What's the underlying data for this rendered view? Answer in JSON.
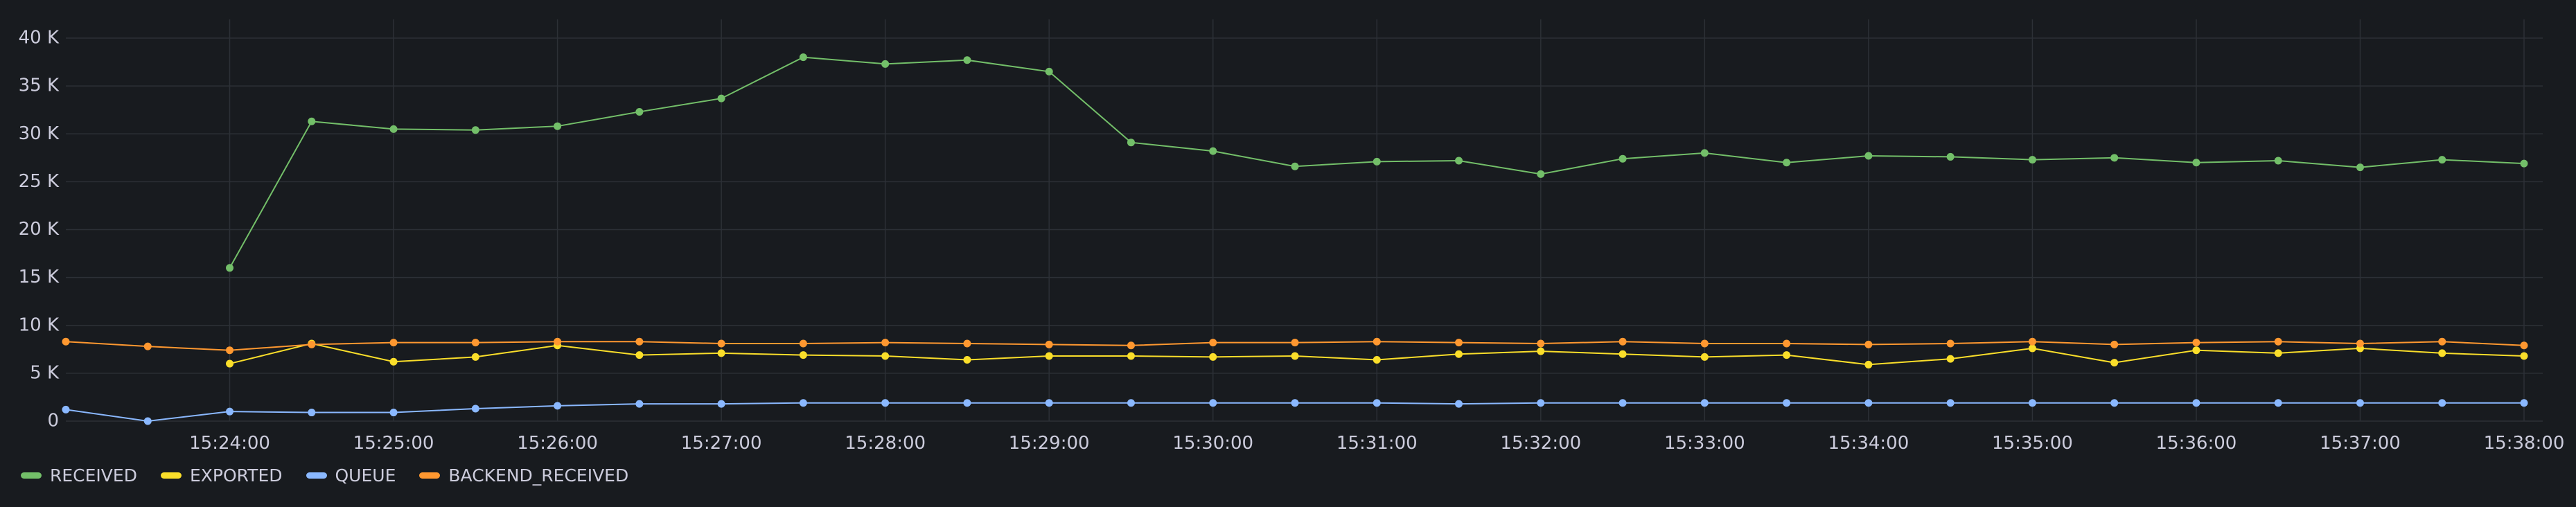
{
  "chart_data": {
    "type": "line",
    "x": [
      "15:23:00",
      "15:23:30",
      "15:24:00",
      "15:24:30",
      "15:25:00",
      "15:25:30",
      "15:26:00",
      "15:26:30",
      "15:27:00",
      "15:27:30",
      "15:28:00",
      "15:28:30",
      "15:29:00",
      "15:29:30",
      "15:30:00",
      "15:30:30",
      "15:31:00",
      "15:31:30",
      "15:32:00",
      "15:32:30",
      "15:33:00",
      "15:33:30",
      "15:34:00",
      "15:34:30",
      "15:35:00",
      "15:35:30",
      "15:36:00",
      "15:36:30",
      "15:37:00",
      "15:37:30",
      "15:38:00"
    ],
    "x_ticks": [
      "15:24:00",
      "15:25:00",
      "15:26:00",
      "15:27:00",
      "15:28:00",
      "15:29:00",
      "15:30:00",
      "15:31:00",
      "15:32:00",
      "15:33:00",
      "15:34:00",
      "15:35:00",
      "15:36:00",
      "15:37:00",
      "15:38:00"
    ],
    "y_ticks": [
      "0",
      "5 K",
      "10 K",
      "15 K",
      "20 K",
      "25 K",
      "30 K",
      "35 K",
      "40 K"
    ],
    "ylim": [
      0,
      40000
    ],
    "grid": true,
    "legend_position": "bottom-left",
    "series": [
      {
        "name": "RECEIVED",
        "color": "#73bf69",
        "values": [
          null,
          null,
          16000,
          31300,
          30500,
          30400,
          30800,
          32300,
          33700,
          38000,
          37300,
          37700,
          36500,
          29100,
          28200,
          26600,
          27100,
          27200,
          25800,
          27400,
          28000,
          27000,
          27700,
          27600,
          27300,
          27500,
          27000,
          27200,
          26500,
          27300,
          26900
        ]
      },
      {
        "name": "EXPORTED",
        "color": "#fade2a",
        "values": [
          null,
          null,
          6000,
          8100,
          6200,
          6700,
          7900,
          6900,
          7100,
          6900,
          6800,
          6400,
          6800,
          6800,
          6700,
          6800,
          6400,
          7000,
          7300,
          7000,
          6700,
          6900,
          5900,
          6500,
          7600,
          6100,
          7400,
          7100,
          7600,
          7100,
          6800
        ]
      },
      {
        "name": "QUEUE",
        "color": "#8ab8ff",
        "values": [
          1200,
          0,
          1000,
          900,
          900,
          1300,
          1600,
          1800,
          1800,
          1900,
          1900,
          1900,
          1900,
          1900,
          1900,
          1900,
          1900,
          1800,
          1900,
          1900,
          1900,
          1900,
          1900,
          1900,
          1900,
          1900,
          1900,
          1900,
          1900,
          1900,
          1900
        ]
      },
      {
        "name": "BACKEND_RECEIVED",
        "color": "#ff9830",
        "values": [
          8300,
          7800,
          7400,
          8000,
          8200,
          8200,
          8300,
          8300,
          8100,
          8100,
          8200,
          8100,
          8000,
          7900,
          8200,
          8200,
          8300,
          8200,
          8100,
          8300,
          8100,
          8100,
          8000,
          8100,
          8300,
          8000,
          8200,
          8300,
          8100,
          8300,
          7900
        ]
      }
    ]
  }
}
